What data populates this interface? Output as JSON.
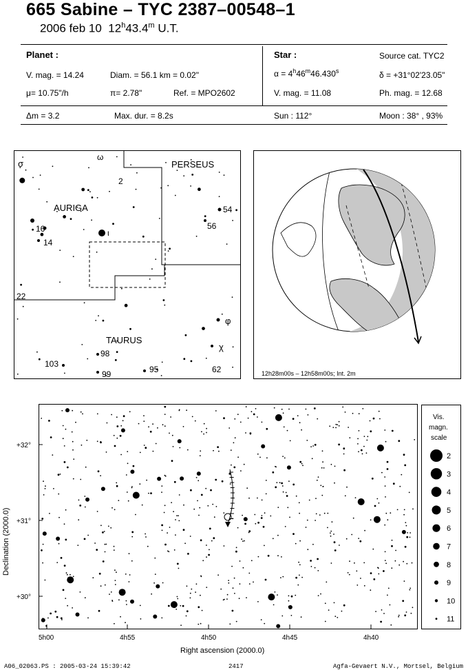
{
  "header": {
    "title": "665 Sabine  –  TYC 2387–00548–1",
    "date": "2006 feb 10",
    "time_h": "12",
    "time_hsup": "h",
    "time_m": "43.4",
    "time_msup": "m",
    "time_ut": "U.T."
  },
  "planet": {
    "heading": "Planet :",
    "vmag": "V. mag. = 14.24",
    "diam": "Diam. = 56.1 km = 0.02\"",
    "mu": "μ=  10.75\"/h",
    "pi": "π=  2.78\"",
    "ref": "Ref. = MPO2602"
  },
  "star": {
    "heading": "Star :",
    "source": "Source cat.  TYC2",
    "alpha": "α = 4",
    "alpha_h": "h",
    "alpha_m": "46",
    "alpha_msup": "m",
    "alpha_s": "46.430",
    "alpha_ssup": "s",
    "delta": "δ = +31°02'23.05\"",
    "vmag": "V. mag. = 11.08",
    "phmag": "Ph. mag. = 12.68"
  },
  "summary": {
    "dm": "Δm = 3.2",
    "maxdur": "Max. dur. = 8.2s",
    "sun": "Sun : 112°",
    "moon": "Moon :  38° , 93%"
  },
  "finder": {
    "labels": {
      "sigma": "σ",
      "omega": "ω",
      "n2": "2",
      "perseus": "PERSEUS",
      "auriga": "AURIGA",
      "n54": "54",
      "n56": "56",
      "n16": "16",
      "iota": "ι",
      "n14": "14",
      "n22": "22",
      "phi": "φ",
      "taurus": "TAURUS",
      "chi": "χ",
      "n98": "98",
      "n103": "103",
      "n99": "99",
      "n95": "95",
      "n62": "62"
    }
  },
  "globe": {
    "caption": "12h28m00s – 12h58m00s; Int.  2m",
    "colors": {
      "shade": "#c8c8c8"
    }
  },
  "detail": {
    "yticks": [
      "+32°",
      "+31°",
      "+30°"
    ],
    "xticks": [
      "5h00",
      "4h55",
      "4h50",
      "4h45",
      "4h40"
    ],
    "ylabel": "Declination (2000.0)",
    "xlabel": "Right ascension (2000.0)"
  },
  "scale": {
    "title1": "Vis.",
    "title2": "magn.",
    "title3": "scale",
    "items": [
      "2",
      "3",
      "4",
      "5",
      "6",
      "7",
      "8",
      "9",
      "10",
      "11"
    ]
  },
  "footer": {
    "left": "A06_02063.PS : 2005-03-24 15:39:42",
    "mid": "2417",
    "right": "Agfa-Gevaert N.V., Mortsel, Belgium"
  }
}
